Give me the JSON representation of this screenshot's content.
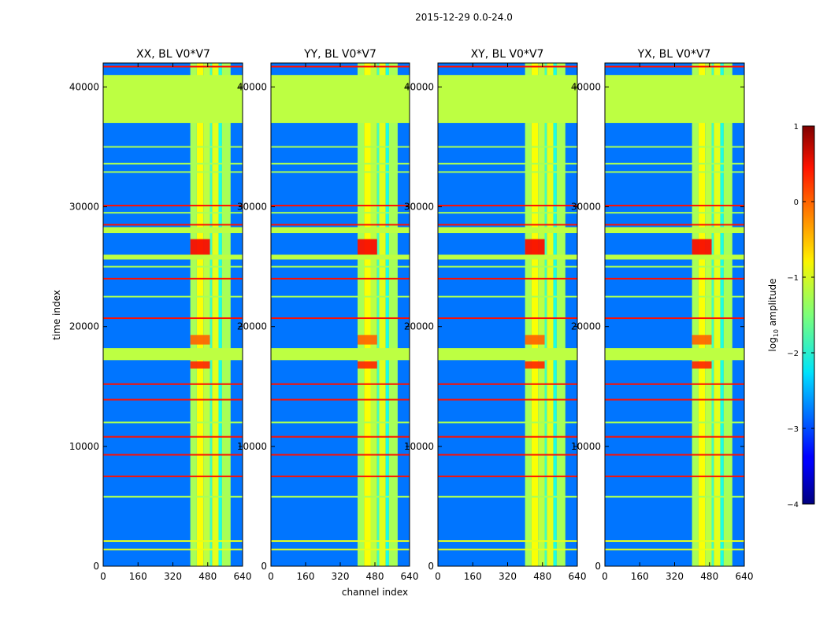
{
  "chart_data": {
    "type": "heatmap",
    "suptitle": "2015-12-29 0.0-24.0",
    "xlabel": "channel index",
    "ylabel": "time index",
    "xlim": [
      0,
      640
    ],
    "ylim": [
      0,
      42000
    ],
    "xticks": [
      0,
      160,
      320,
      480,
      640
    ],
    "yticks": [
      0,
      10000,
      20000,
      30000,
      40000
    ],
    "colormap": "jet",
    "colorbar": {
      "label": "log10 amplitude",
      "label_main": "log",
      "label_sub": "10",
      "label_tail": " amplitude",
      "range": [
        -4,
        1
      ],
      "ticks": [
        1,
        0,
        -1,
        -2,
        -3,
        -4
      ],
      "tick_labels": [
        "1",
        "0",
        "−1",
        "−2",
        "−3",
        "−4"
      ]
    },
    "panels": [
      {
        "title": "XX, BL V0*V7",
        "polarization": "XX",
        "baseline": "V0*V7"
      },
      {
        "title": "YY, BL V0*V7",
        "polarization": "YY",
        "baseline": "V0*V7"
      },
      {
        "title": "XY, BL V0*V7",
        "polarization": "XY",
        "baseline": "V0*V7"
      },
      {
        "title": "YX, BL V0*V7",
        "polarization": "YX",
        "baseline": "V0*V7"
      }
    ],
    "background_level": -2.8,
    "masked_time_blocks": [
      {
        "t0": 37000,
        "t1": 41000,
        "level": -1.2
      },
      {
        "t0": 17200,
        "t1": 18200,
        "level": -1.2
      },
      {
        "t0": 27800,
        "t1": 28300,
        "level": -1.2
      },
      {
        "t0": 25600,
        "t1": 26000,
        "level": -1.2
      }
    ],
    "rfi_time_lines": [
      {
        "t": 41700,
        "level": 0.3
      },
      {
        "t": 30100,
        "level": 0.3
      },
      {
        "t": 28500,
        "level": 0.3
      },
      {
        "t": 24000,
        "level": 0.3
      },
      {
        "t": 20700,
        "level": 0.3
      },
      {
        "t": 15200,
        "level": 0.3
      },
      {
        "t": 13900,
        "level": 0.3
      },
      {
        "t": 10800,
        "level": 0.3
      },
      {
        "t": 9300,
        "level": 0.3
      },
      {
        "t": 7500,
        "level": 0.3
      },
      {
        "t": 2100,
        "level": -1.0
      },
      {
        "t": 1400,
        "level": -1.0
      },
      {
        "t": 35000,
        "level": -1.3
      },
      {
        "t": 33600,
        "level": -1.3
      },
      {
        "t": 32900,
        "level": -1.3
      },
      {
        "t": 29500,
        "level": -1.3
      },
      {
        "t": 25000,
        "level": -1.3
      },
      {
        "t": 22500,
        "level": -1.3
      },
      {
        "t": 12000,
        "level": -1.3
      },
      {
        "t": 5800,
        "level": -1.3
      }
    ],
    "channel_bands": [
      {
        "c0": 400,
        "c1": 430,
        "level": -1.3
      },
      {
        "c0": 430,
        "c1": 460,
        "level": -0.9
      },
      {
        "c0": 460,
        "c1": 490,
        "level": -1.2
      },
      {
        "c0": 490,
        "c1": 500,
        "level": -1.8
      },
      {
        "c0": 500,
        "c1": 530,
        "level": -1.0
      },
      {
        "c0": 530,
        "c1": 545,
        "level": -2.0
      },
      {
        "c0": 545,
        "c1": 585,
        "level": -1.3
      }
    ],
    "hot_time_ranges": [
      {
        "t0": 26000,
        "t1": 27300,
        "level": 0.4
      },
      {
        "t0": 16500,
        "t1": 17100,
        "level": 0.2
      },
      {
        "t0": 18500,
        "t1": 19300,
        "level": -0.1
      }
    ]
  }
}
